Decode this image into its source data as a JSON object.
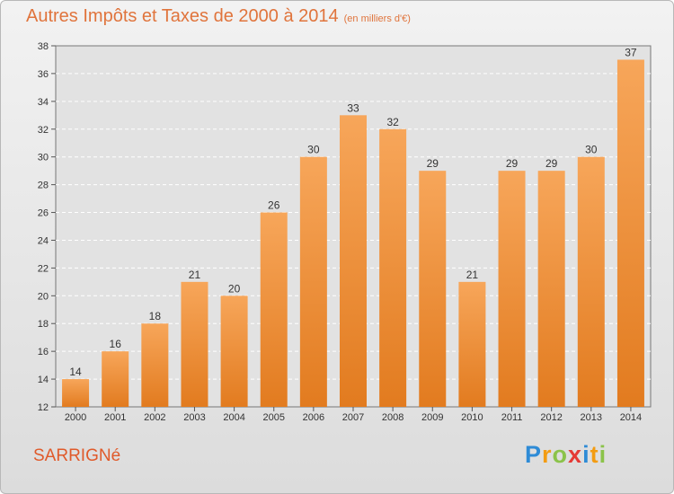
{
  "chart_data": {
    "type": "bar",
    "title": "Autres Impôts et Taxes de 2000 à 2014",
    "subtitle": "(en milliers d'€)",
    "categories": [
      "2000",
      "2001",
      "2002",
      "2003",
      "2004",
      "2005",
      "2006",
      "2007",
      "2008",
      "2009",
      "2010",
      "2011",
      "2012",
      "2013",
      "2014"
    ],
    "values": [
      14,
      16,
      18,
      21,
      20,
      26,
      30,
      33,
      32,
      29,
      21,
      29,
      29,
      30,
      37
    ],
    "ylim": [
      12,
      38
    ],
    "yticks": [
      12,
      14,
      16,
      18,
      20,
      22,
      24,
      26,
      28,
      30,
      32,
      34,
      36,
      38
    ],
    "grid": true,
    "bar_color_top": "#f7a65a",
    "bar_color_bottom": "#e27b1f"
  },
  "commune": "SARRIGNé",
  "logo": {
    "text": "Proxiti",
    "letters": [
      {
        "ch": "P",
        "color": "#2e8bd6"
      },
      {
        "ch": "r",
        "color": "#f39c12"
      },
      {
        "ch": "o",
        "color": "#8bc34a"
      },
      {
        "ch": "x",
        "color": "#e53935"
      },
      {
        "ch": "i",
        "color": "#2e8bd6"
      },
      {
        "ch": "t",
        "color": "#f39c12"
      },
      {
        "ch": "i",
        "color": "#8bc34a"
      }
    ]
  }
}
